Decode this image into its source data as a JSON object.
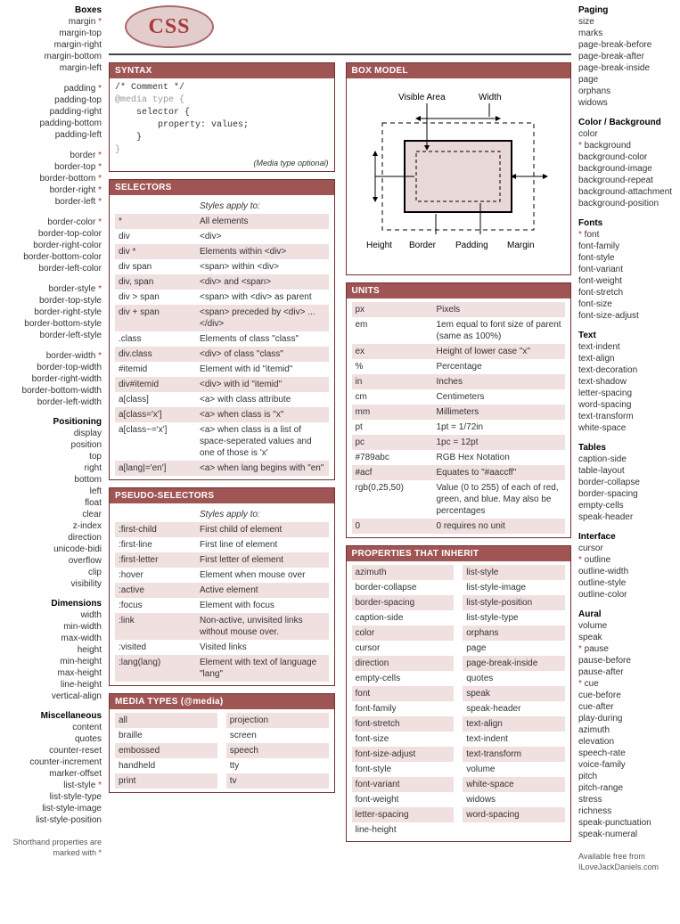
{
  "logo": "CSS",
  "colors": {
    "accent": "#a05555",
    "border": "#722f2f",
    "zebra": "#f0e0e0",
    "star": "#a33"
  },
  "left": [
    {
      "title": "Boxes",
      "items": [
        {
          "t": "margin",
          "s": true
        },
        {
          "t": "margin-top"
        },
        {
          "t": "margin-right"
        },
        {
          "t": "margin-bottom"
        },
        {
          "t": "margin-left"
        }
      ]
    },
    {
      "items": [
        {
          "t": "padding",
          "s": true
        },
        {
          "t": "padding-top"
        },
        {
          "t": "padding-right"
        },
        {
          "t": "padding-bottom"
        },
        {
          "t": "padding-left"
        }
      ]
    },
    {
      "items": [
        {
          "t": "border",
          "s": true
        },
        {
          "t": "border-top",
          "s": true
        },
        {
          "t": "border-bottom",
          "s": true
        },
        {
          "t": "border-right",
          "s": true
        },
        {
          "t": "border-left",
          "s": true
        }
      ]
    },
    {
      "items": [
        {
          "t": "border-color",
          "s": true
        },
        {
          "t": "border-top-color"
        },
        {
          "t": "border-right-color"
        },
        {
          "t": "border-bottom-color"
        },
        {
          "t": "border-left-color"
        }
      ]
    },
    {
      "items": [
        {
          "t": "border-style",
          "s": true
        },
        {
          "t": "border-top-style"
        },
        {
          "t": "border-right-style"
        },
        {
          "t": "border-bottom-style"
        },
        {
          "t": "border-left-style"
        }
      ]
    },
    {
      "items": [
        {
          "t": "border-width",
          "s": true
        },
        {
          "t": "border-top-width"
        },
        {
          "t": "border-right-width"
        },
        {
          "t": "border-bottom-width"
        },
        {
          "t": "border-left-width"
        }
      ]
    },
    {
      "title": "Positioning",
      "items": [
        {
          "t": "display"
        },
        {
          "t": "position"
        },
        {
          "t": "top"
        },
        {
          "t": "right"
        },
        {
          "t": "bottom"
        },
        {
          "t": "left"
        },
        {
          "t": "float"
        },
        {
          "t": "clear"
        },
        {
          "t": "z-index"
        },
        {
          "t": "direction"
        },
        {
          "t": "unicode-bidi"
        },
        {
          "t": "overflow"
        },
        {
          "t": "clip"
        },
        {
          "t": "visibility"
        }
      ]
    },
    {
      "title": "Dimensions",
      "items": [
        {
          "t": "width"
        },
        {
          "t": "min-width"
        },
        {
          "t": "max-width"
        },
        {
          "t": "height"
        },
        {
          "t": "min-height"
        },
        {
          "t": "max-height"
        },
        {
          "t": "line-height"
        },
        {
          "t": "vertical-align"
        }
      ]
    },
    {
      "title": "Miscellaneous",
      "items": [
        {
          "t": "content"
        },
        {
          "t": "quotes"
        },
        {
          "t": "counter-reset"
        },
        {
          "t": "counter-increment"
        },
        {
          "t": "marker-offset"
        },
        {
          "t": "list-style",
          "s": true
        },
        {
          "t": "list-style-type"
        },
        {
          "t": "list-style-image"
        },
        {
          "t": "list-style-position"
        }
      ]
    }
  ],
  "left_footnote": "Shorthand properties are marked with",
  "right": [
    {
      "title": "Paging",
      "items": [
        {
          "t": "size"
        },
        {
          "t": "marks"
        },
        {
          "t": "page-break-before"
        },
        {
          "t": "page-break-after"
        },
        {
          "t": "page-break-inside"
        },
        {
          "t": "page"
        },
        {
          "t": "orphans"
        },
        {
          "t": "widows"
        }
      ]
    },
    {
      "title": "Color / Background",
      "items": [
        {
          "t": "color"
        },
        {
          "t": "background",
          "s": true,
          "pre": true
        },
        {
          "t": "background-color"
        },
        {
          "t": "background-image"
        },
        {
          "t": "background-repeat"
        },
        {
          "t": "background-attachment"
        },
        {
          "t": "background-position"
        }
      ]
    },
    {
      "title": "Fonts",
      "items": [
        {
          "t": "font",
          "s": true,
          "pre": true
        },
        {
          "t": "font-family"
        },
        {
          "t": "font-style"
        },
        {
          "t": "font-variant"
        },
        {
          "t": "font-weight"
        },
        {
          "t": "font-stretch"
        },
        {
          "t": "font-size"
        },
        {
          "t": "font-size-adjust"
        }
      ]
    },
    {
      "title": "Text",
      "items": [
        {
          "t": "text-indent"
        },
        {
          "t": "text-align"
        },
        {
          "t": "text-decoration"
        },
        {
          "t": "text-shadow"
        },
        {
          "t": "letter-spacing"
        },
        {
          "t": "word-spacing"
        },
        {
          "t": "text-transform"
        },
        {
          "t": "white-space"
        }
      ]
    },
    {
      "title": "Tables",
      "items": [
        {
          "t": "caption-side"
        },
        {
          "t": "table-layout"
        },
        {
          "t": "border-collapse"
        },
        {
          "t": "border-spacing"
        },
        {
          "t": "empty-cells"
        },
        {
          "t": "speak-header"
        }
      ]
    },
    {
      "title": "Interface",
      "items": [
        {
          "t": "cursor"
        },
        {
          "t": "outline",
          "s": true,
          "pre": true
        },
        {
          "t": "outline-width"
        },
        {
          "t": "outline-style"
        },
        {
          "t": "outline-color"
        }
      ]
    },
    {
      "title": "Aural",
      "items": [
        {
          "t": "volume"
        },
        {
          "t": "speak"
        },
        {
          "t": "pause",
          "s": true,
          "pre": true
        },
        {
          "t": "pause-before"
        },
        {
          "t": "pause-after"
        },
        {
          "t": "cue",
          "s": true,
          "pre": true
        },
        {
          "t": "cue-before"
        },
        {
          "t": "cue-after"
        },
        {
          "t": "play-during"
        },
        {
          "t": "azimuth"
        },
        {
          "t": "elevation"
        },
        {
          "t": "speech-rate"
        },
        {
          "t": "voice-family"
        },
        {
          "t": "pitch"
        },
        {
          "t": "pitch-range"
        },
        {
          "t": "stress"
        },
        {
          "t": "richness"
        },
        {
          "t": "speak-punctuation"
        },
        {
          "t": "speak-numeral"
        }
      ]
    }
  ],
  "right_footnote1": "Available free from",
  "right_footnote2": "ILoveJackDaniels.com",
  "panels": {
    "syntax": {
      "title": "SYNTAX",
      "code": "/* Comment */\n@media type {\n    selector {\n        property: values;\n    }\n}",
      "note": "(Media type optional)"
    },
    "selectors": {
      "title": "SELECTORS",
      "hint": "Styles apply to:",
      "rows": [
        [
          "*",
          "All elements"
        ],
        [
          "div",
          "<div>"
        ],
        [
          "div *",
          "Elements within <div>"
        ],
        [
          "div span",
          "<span> within <div>"
        ],
        [
          "div, span",
          "<div> and <span>"
        ],
        [
          "div > span",
          "<span> with <div> as parent"
        ],
        [
          "div + span",
          "<span> preceded by <div> ... </div>"
        ],
        [
          ".class",
          "Elements of class \"class\""
        ],
        [
          "div.class",
          "<div> of class \"class\""
        ],
        [
          "#itemid",
          "Element with id \"itemid\""
        ],
        [
          "div#itemid",
          "<div> with id \"itemid\""
        ],
        [
          "a[class]",
          "<a> with class attribute"
        ],
        [
          "a[class='x']",
          "<a> when class is \"x\""
        ],
        [
          "a[class~='x']",
          "<a> when class is a list of space-seperated values and one of those is 'x'"
        ],
        [
          "a[lang|='en']",
          "<a> when lang begins with \"en\""
        ]
      ]
    },
    "pseudo": {
      "title": "PSEUDO-SELECTORS",
      "hint": "Styles apply to:",
      "rows": [
        [
          ":first-child",
          "First child of element"
        ],
        [
          ":first-line",
          "First line of element"
        ],
        [
          ":first-letter",
          "First letter of element"
        ],
        [
          ":hover",
          "Element when mouse over"
        ],
        [
          ":active",
          "Active element"
        ],
        [
          ":focus",
          "Element with focus"
        ],
        [
          ":link",
          "Non-active, unvisited links without mouse over."
        ],
        [
          ":visited",
          "Visited links"
        ],
        [
          ":lang(lang)",
          "Element with text of language \"lang\""
        ]
      ]
    },
    "media": {
      "title": "MEDIA TYPES (@media)",
      "col1": [
        "all",
        "braille",
        "embossed",
        "handheld",
        "print"
      ],
      "col2": [
        "projection",
        "screen",
        "speech",
        "tty",
        "tv"
      ]
    },
    "boxmodel": {
      "title": "BOX MODEL",
      "labels": {
        "visible": "Visible Area",
        "width": "Width",
        "height": "Height",
        "border": "Border",
        "padding": "Padding",
        "margin": "Margin"
      }
    },
    "units": {
      "title": "UNITS",
      "rows": [
        [
          "px",
          "Pixels"
        ],
        [
          "em",
          "1em equal to font size of parent (same as 100%)"
        ],
        [
          "ex",
          "Height of lower case \"x\""
        ],
        [
          "%",
          "Percentage"
        ],
        [
          "in",
          "Inches"
        ],
        [
          "cm",
          "Centimeters"
        ],
        [
          "mm",
          "Millimeters"
        ],
        [
          "pt",
          "1pt = 1/72in"
        ],
        [
          "pc",
          "1pc = 12pt"
        ],
        [
          "#789abc",
          "RGB Hex Notation"
        ],
        [
          "#acf",
          "Equates to \"#aaccff\""
        ],
        [
          "rgb(0,25,50)",
          "Value (0 to 255) of each of red, green, and blue. May also be percentages"
        ],
        [
          "0",
          "0 requires no unit"
        ]
      ]
    },
    "inherit": {
      "title": "PROPERTIES THAT INHERIT",
      "col1": [
        "azimuth",
        "border-collapse",
        "border-spacing",
        "caption-side",
        "color",
        "cursor",
        "direction",
        "empty-cells",
        "font",
        "font-family",
        "font-stretch",
        "font-size",
        "font-size-adjust",
        "font-style",
        "font-variant",
        "font-weight",
        "letter-spacing",
        "line-height"
      ],
      "col2": [
        "list-style",
        "list-style-image",
        "list-style-position",
        "list-style-type",
        "orphans",
        "page",
        "page-break-inside",
        "quotes",
        "speak",
        "speak-header",
        "text-align",
        "text-indent",
        "text-transform",
        "volume",
        "white-space",
        "widows",
        "word-spacing"
      ]
    }
  }
}
